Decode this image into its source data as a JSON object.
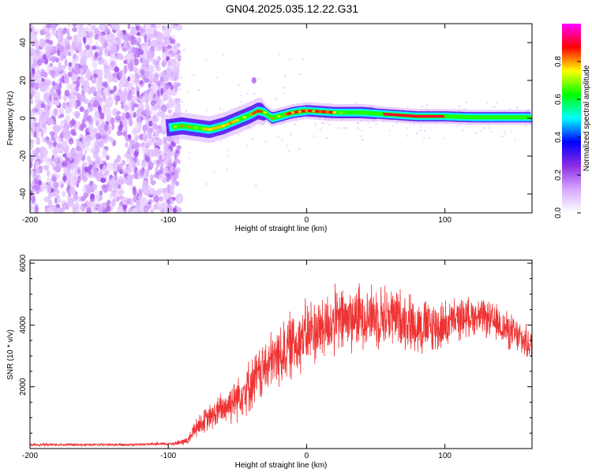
{
  "figure": {
    "title": "GN04.2025.035.12.22.G31"
  },
  "chart_data": [
    {
      "type": "heatmap",
      "xlabel": "Height of straight line (km)",
      "ylabel": "Frequency (Hz)",
      "xlim": [
        -200,
        163
      ],
      "ylim": [
        -50,
        50
      ],
      "xticks": [
        -200,
        -100,
        0,
        100
      ],
      "yticks": [
        -40,
        -20,
        0,
        20,
        40
      ],
      "colorbar": {
        "label": "Normalized spectral amplitude",
        "range": [
          0,
          1
        ],
        "ticks": [
          "0.0",
          "0.2",
          "0.4",
          "0.6",
          "0.8"
        ],
        "colors": [
          "#ffffff",
          "#d6a8ff",
          "#8a2be2",
          "#0000ff",
          "#00ffff",
          "#00ff00",
          "#ffff00",
          "#ff0000",
          "#ff00ff"
        ]
      },
      "noise_region_x": [
        -200,
        -92
      ],
      "ridge": {
        "x": [
          -100,
          -90,
          -80,
          -70,
          -60,
          -50,
          -40,
          -35,
          -30,
          -25,
          -20,
          -10,
          0,
          20,
          40,
          60,
          80,
          100,
          120,
          140,
          163
        ],
        "y": [
          -5,
          -4,
          -5,
          -6,
          -4,
          -1,
          2,
          4,
          3,
          0,
          1,
          3,
          4,
          3,
          3,
          2,
          1,
          1,
          0.5,
          0.5,
          0.5
        ]
      }
    },
    {
      "type": "line",
      "xlabel": "Height of straight line (km)",
      "ylabel": "SNR (10 * v/v)",
      "xlim": [
        -200,
        163
      ],
      "ylim": [
        0,
        6100
      ],
      "xticks": [
        -200,
        -100,
        0,
        100
      ],
      "yticks": [
        2000,
        4000,
        6000
      ],
      "series": [
        {
          "color": "#ee3333",
          "x": [
            -200,
            -180,
            -160,
            -140,
            -120,
            -100,
            -90,
            -85,
            -80,
            -70,
            -60,
            -50,
            -40,
            -30,
            -20,
            -10,
            0,
            10,
            20,
            30,
            40,
            50,
            60,
            70,
            80,
            90,
            100,
            110,
            120,
            130,
            140,
            150,
            163
          ],
          "y": [
            120,
            130,
            120,
            125,
            130,
            150,
            200,
            300,
            700,
            1000,
            1300,
            1700,
            2100,
            2600,
            3000,
            3400,
            3700,
            3900,
            4100,
            4200,
            4300,
            4300,
            4300,
            4200,
            4000,
            3900,
            4000,
            4200,
            4300,
            4200,
            4000,
            3700,
            3300
          ],
          "spread": [
            50,
            50,
            50,
            50,
            50,
            60,
            120,
            200,
            400,
            500,
            700,
            900,
            1000,
            1100,
            1200,
            1300,
            1300,
            1300,
            1300,
            1300,
            1200,
            1200,
            1200,
            1100,
            1100,
            1100,
            900,
            800,
            700,
            700,
            700,
            700,
            600
          ]
        }
      ]
    }
  ]
}
